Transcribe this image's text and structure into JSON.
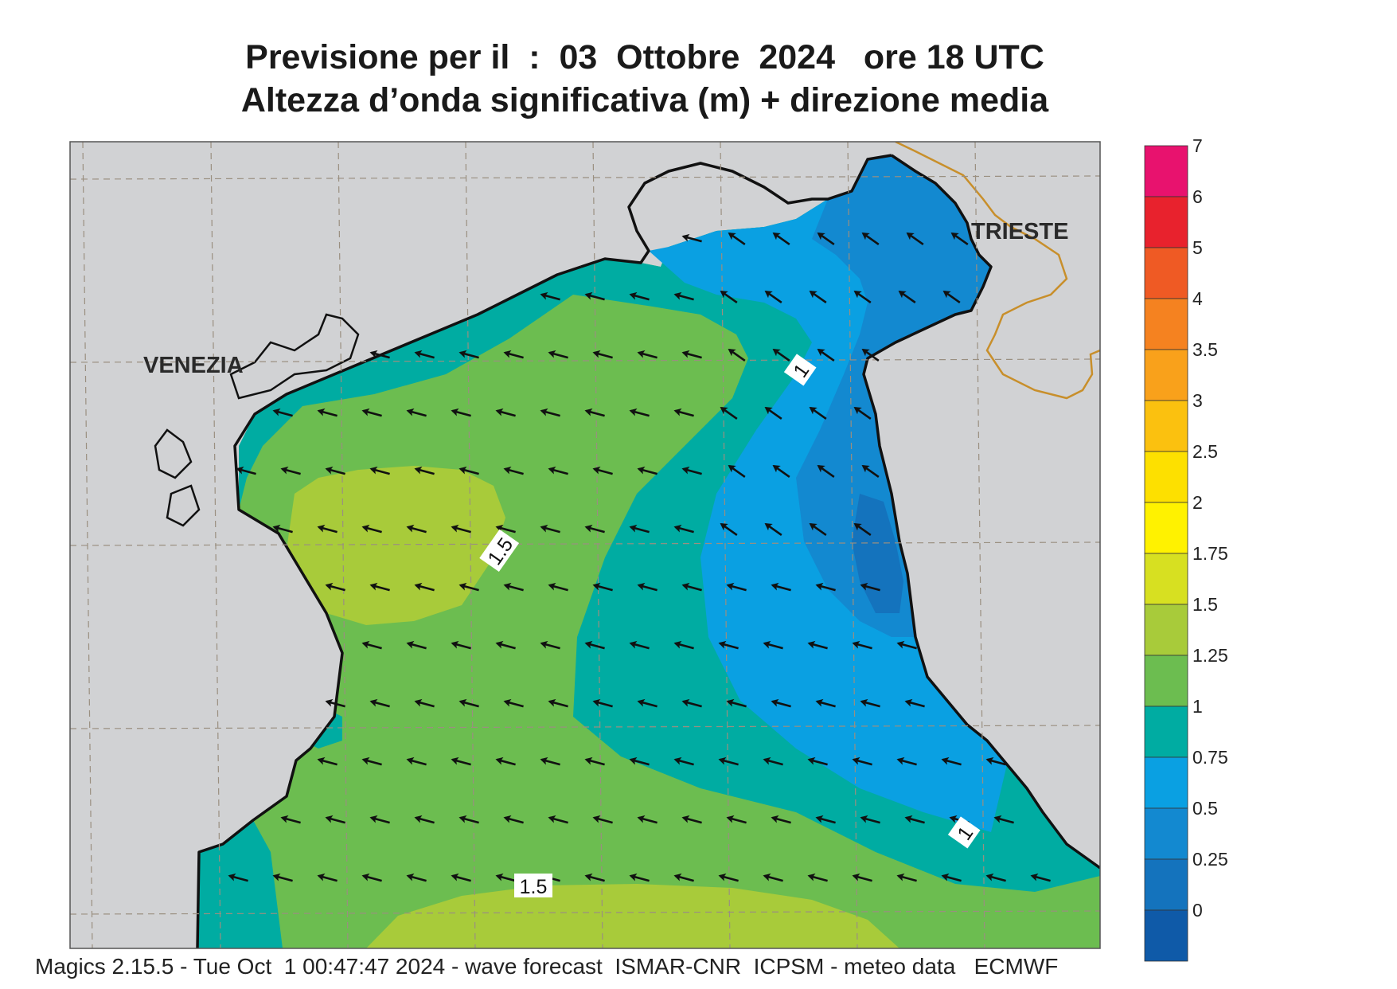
{
  "title": {
    "line1": "Previsione per il  :  03  Ottobre  2024   ore 18 UTC",
    "line2": "Altezza d’onda significativa (m) + direzione media"
  },
  "map": {
    "cities": [
      {
        "name": "VENEZIA"
      },
      {
        "name": "TRIESTE"
      }
    ],
    "contour_labels": [
      "1.5",
      "1",
      "1.5",
      "1"
    ],
    "arrow_direction": "south-west",
    "colors": {
      "land": "#d1d2d4",
      "coast": "#111111",
      "border": "#c88f2b",
      "arrow": "#111111"
    }
  },
  "legend": {
    "labels": [
      "7",
      "6",
      "5",
      "4",
      "3.5",
      "3",
      "2.5",
      "2",
      "1.75",
      "1.5",
      "1.25",
      "1",
      "0.75",
      "0.5",
      "0.25",
      "0"
    ],
    "colors": [
      "#e8126e",
      "#e8222d",
      "#ef5a24",
      "#f58220",
      "#f9a11b",
      "#fbc10f",
      "#fde000",
      "#fff200",
      "#d7e021",
      "#a8cb3a",
      "#6cbd50",
      "#00aca2",
      "#0aa0e2",
      "#1389d0",
      "#1473bd",
      "#0f5aa8"
    ]
  },
  "footer": "Magics 2.15.5 - Tue Oct  1 00:47:47 2024 - wave forecast  ISMAR-CNR  ICPSM - meteo data   ECMWF"
}
